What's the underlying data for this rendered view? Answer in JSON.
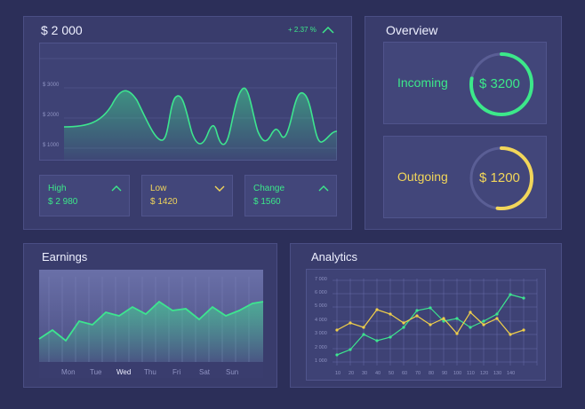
{
  "balance": {
    "amount": "$ 2 000",
    "change": "+ 2.37 %",
    "y_axis": [
      "$ 3000",
      "$ 2000",
      "$ 1000"
    ],
    "colors": {
      "line": "#3de58f",
      "fill": "#3de58f"
    }
  },
  "stats": [
    {
      "label": "High",
      "value": "$ 2 980",
      "arrow": "chevron-up-icon",
      "label_color": "#3ce88a",
      "value_color": "#3ce88a"
    },
    {
      "label": "Low",
      "value": "$ 1420",
      "arrow": "chevron-down-icon",
      "label_color": "#f2d65a",
      "value_color": "#f2d65a"
    },
    {
      "label": "Change",
      "value": "$ 1560",
      "arrow": "chevron-up-icon",
      "label_color": "#3ce88a",
      "value_color": "#3ce88a"
    }
  ],
  "overview": {
    "title": "Overview",
    "incoming": {
      "label": "Incoming",
      "value": "$ 3200",
      "color": "#3ce88a",
      "progress": 0.78
    },
    "outgoing": {
      "label": "Outgoing",
      "value": "$ 1200",
      "color": "#f2d65a",
      "progress": 0.52
    }
  },
  "earnings": {
    "title": "Earnings",
    "days": [
      "Mon",
      "Tue",
      "Wed",
      "Thu",
      "Fri",
      "Sat",
      "Sun"
    ],
    "selected_day": "Wed"
  },
  "analytics": {
    "title": "Analytics",
    "y_ticks": [
      "7 000",
      "6 000",
      "5 000",
      "4 000",
      "3 000",
      "2 000",
      "1 000"
    ],
    "x_ticks": [
      "10",
      "20",
      "30",
      "40",
      "50",
      "60",
      "70",
      "80",
      "90",
      "100",
      "110",
      "120",
      "130",
      "140"
    ],
    "series_colors": {
      "green": "#3de58f",
      "yellow": "#f0cf4a"
    }
  }
}
